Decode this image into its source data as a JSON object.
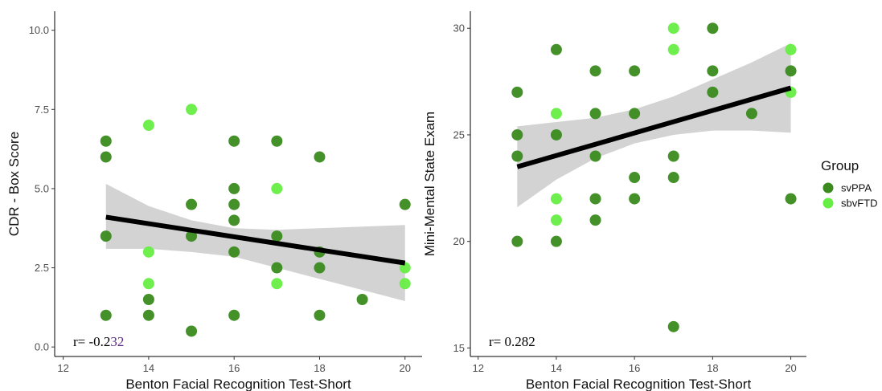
{
  "colors": {
    "svPPA": "#3a8a1e",
    "sbvFTD": "#66ee44",
    "ribbon": "#d3d3d3",
    "fit": "#000000",
    "r_digits_accent": "#5b2a86"
  },
  "legend": {
    "title": "Group",
    "items": [
      {
        "label": "svPPA",
        "color": "#3a8a1e"
      },
      {
        "label": "sbvFTD",
        "color": "#66ee44"
      }
    ]
  },
  "chart_data": [
    {
      "type": "scatter",
      "xlabel": "Benton Facial Recognition Test-Short",
      "ylabel": "CDR - Box Score",
      "xlim": [
        11.8,
        20.4
      ],
      "ylim": [
        -0.3,
        10.6
      ],
      "xticks": [
        12,
        14,
        16,
        18,
        20
      ],
      "yticks": [
        0.0,
        2.5,
        5.0,
        7.5,
        10.0
      ],
      "ytick_labels": [
        "0.0",
        "2.5",
        "5.0",
        "7.5",
        "10.0"
      ],
      "annotation": {
        "prefix": "r= -0.2",
        "suffix": "32"
      },
      "fit": {
        "x": [
          13,
          20
        ],
        "y": [
          4.1,
          2.65
        ]
      },
      "ribbon": {
        "x": [
          13,
          14,
          15,
          16,
          17,
          18,
          19,
          20
        ],
        "lower": [
          3.1,
          3.1,
          3.0,
          2.85,
          2.5,
          2.15,
          1.8,
          1.45
        ],
        "upper": [
          5.15,
          4.45,
          4.0,
          3.75,
          3.7,
          3.75,
          3.8,
          3.85
        ]
      },
      "series": [
        {
          "name": "svPPA",
          "points": [
            [
              13,
              6.5
            ],
            [
              13,
              6.0
            ],
            [
              13,
              3.5
            ],
            [
              13,
              1.0
            ],
            [
              14,
              1.5
            ],
            [
              14,
              1.0
            ],
            [
              15,
              4.5
            ],
            [
              15,
              3.5
            ],
            [
              15,
              0.5
            ],
            [
              16,
              6.5
            ],
            [
              16,
              5.0
            ],
            [
              16,
              4.5
            ],
            [
              16,
              4.0
            ],
            [
              16,
              3.0
            ],
            [
              16,
              1.0
            ],
            [
              17,
              6.5
            ],
            [
              17,
              3.5
            ],
            [
              17,
              2.5
            ],
            [
              18,
              6.0
            ],
            [
              18,
              3.0
            ],
            [
              18,
              2.5
            ],
            [
              18,
              1.0
            ],
            [
              19,
              1.5
            ],
            [
              20,
              4.5
            ]
          ]
        },
        {
          "name": "sbvFTD",
          "points": [
            [
              14,
              7.0
            ],
            [
              14,
              3.0
            ],
            [
              14,
              2.0
            ],
            [
              15,
              7.5
            ],
            [
              17,
              5.0
            ],
            [
              17,
              2.0
            ],
            [
              20,
              2.5
            ],
            [
              20,
              2.0
            ]
          ]
        }
      ]
    },
    {
      "type": "scatter",
      "xlabel": "Benton Facial Recognition Test-Short",
      "ylabel": "Mini-Mental State Exam",
      "xlim": [
        11.8,
        20.4
      ],
      "ylim": [
        14.6,
        30.8
      ],
      "xticks": [
        12,
        14,
        16,
        18,
        20
      ],
      "yticks": [
        15,
        20,
        25,
        30
      ],
      "ytick_labels": [
        "15",
        "20",
        "25",
        "30"
      ],
      "annotation": {
        "prefix": "r= 0.282",
        "suffix": ""
      },
      "fit": {
        "x": [
          13,
          20
        ],
        "y": [
          23.5,
          27.2
        ]
      },
      "ribbon": {
        "x": [
          13,
          14,
          15,
          16,
          17,
          18,
          19,
          20
        ],
        "lower": [
          21.6,
          22.9,
          23.9,
          24.6,
          25.0,
          25.2,
          25.2,
          25.1
        ],
        "upper": [
          25.4,
          25.6,
          25.8,
          26.2,
          26.8,
          27.6,
          28.4,
          29.3
        ]
      },
      "series": [
        {
          "name": "svPPA",
          "points": [
            [
              13,
              27
            ],
            [
              13,
              25
            ],
            [
              13,
              24
            ],
            [
              13,
              20
            ],
            [
              14,
              29
            ],
            [
              14,
              25
            ],
            [
              14,
              20
            ],
            [
              15,
              28
            ],
            [
              15,
              26
            ],
            [
              15,
              24
            ],
            [
              15,
              22
            ],
            [
              15,
              21
            ],
            [
              16,
              28
            ],
            [
              16,
              26
            ],
            [
              16,
              23
            ],
            [
              16,
              22
            ],
            [
              17,
              24
            ],
            [
              17,
              23
            ],
            [
              17,
              16
            ],
            [
              18,
              30
            ],
            [
              18,
              28
            ],
            [
              18,
              27
            ],
            [
              19,
              26
            ],
            [
              20,
              28
            ],
            [
              20,
              22
            ]
          ]
        },
        {
          "name": "sbvFTD",
          "points": [
            [
              14,
              26
            ],
            [
              14,
              22
            ],
            [
              14,
              21
            ],
            [
              17,
              30
            ],
            [
              17,
              29
            ],
            [
              20,
              29
            ],
            [
              20,
              27
            ]
          ]
        }
      ]
    }
  ]
}
